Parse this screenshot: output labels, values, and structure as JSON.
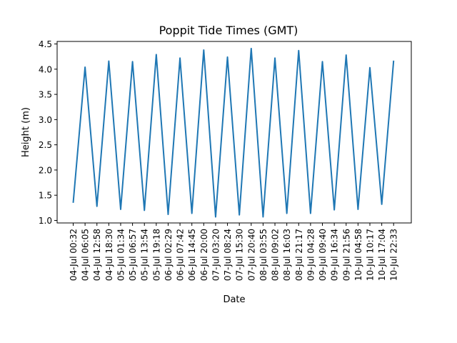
{
  "chart_data": {
    "type": "line",
    "title": "Poppit Tide Times (GMT)",
    "xlabel": "Date",
    "ylabel": "Height (m)",
    "categories": [
      "04-Jul 00:32",
      "04-Jul 06:05",
      "04-Jul 12:58",
      "04-Jul 18:30",
      "05-Jul 01:34",
      "05-Jul 06:57",
      "05-Jul 13:54",
      "05-Jul 19:18",
      "06-Jul 02:29",
      "06-Jul 07:42",
      "06-Jul 14:45",
      "06-Jul 20:00",
      "07-Jul 03:20",
      "07-Jul 08:24",
      "07-Jul 15:30",
      "07-Jul 20:40",
      "08-Jul 03:55",
      "08-Jul 09:02",
      "08-Jul 16:03",
      "08-Jul 21:17",
      "09-Jul 04:28",
      "09-Jul 09:40",
      "09-Jul 16:34",
      "09-Jul 21:56",
      "10-Jul 04:58",
      "10-Jul 10:17",
      "10-Jul 17:04",
      "10-Jul 22:33"
    ],
    "series": [
      {
        "color": "#1f77b4",
        "values": [
          1.35,
          4.04,
          1.28,
          4.16,
          1.22,
          4.15,
          1.2,
          4.29,
          1.12,
          4.22,
          1.14,
          4.38,
          1.07,
          4.24,
          1.11,
          4.41,
          1.07,
          4.22,
          1.14,
          4.37,
          1.14,
          4.15,
          1.21,
          4.28,
          1.22,
          4.03,
          1.32,
          4.17
        ]
      }
    ],
    "ylim": [
      0.95,
      4.55
    ],
    "yticks": [
      1.0,
      1.5,
      2.0,
      2.5,
      3.0,
      3.5,
      4.0,
      4.5
    ],
    "ytick_labels": [
      "1.0",
      "1.5",
      "2.0",
      "2.5",
      "3.0",
      "3.5",
      "4.0",
      "4.5"
    ],
    "grid": false,
    "legend": "none"
  }
}
